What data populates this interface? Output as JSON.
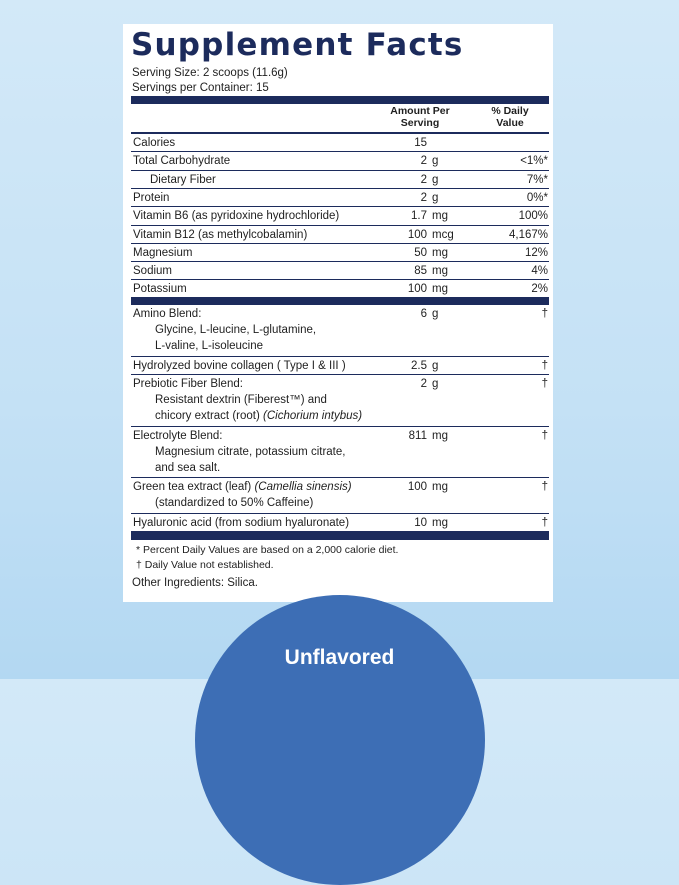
{
  "title": "Supplement Facts",
  "serving_size": "Serving Size: 2 scoops (11.6g)",
  "servings_per_container": "Servings per Container: 15",
  "header": {
    "amount": "Amount Per Serving",
    "dv": "% Daily Value"
  },
  "rows": [
    {
      "name": "Calories",
      "amount": "15"
    },
    {
      "name": "Total Carbohydrate",
      "amount": "2",
      "unit": "g",
      "dv": "<1%*"
    },
    {
      "name": "Dietary Fiber",
      "indent": true,
      "amount": "2",
      "unit": "g",
      "dv": "7%*"
    },
    {
      "name": "Protein",
      "amount": "2",
      "unit": "g",
      "dv": "0%*"
    },
    {
      "name": "Vitamin B6 (as pyridoxine hydrochloride)",
      "amount": "1.7",
      "unit": "mg",
      "dv": "100%"
    },
    {
      "name": "Vitamin B12 (as methylcobalamin)",
      "amount": "100",
      "unit": "mcg",
      "dv": "4,167%"
    },
    {
      "name": "Magnesium",
      "amount": "50",
      "unit": "mg",
      "dv": "12%"
    },
    {
      "name": "Sodium",
      "amount": "85",
      "unit": "mg",
      "dv": "4%"
    },
    {
      "name": "Potassium",
      "amount": "100",
      "unit": "mg",
      "dv": "2%"
    }
  ],
  "blends": [
    {
      "name": "Amino Blend:",
      "sub": [
        "Glycine, L-leucine, L-glutamine,",
        "L-valine, L-isoleucine"
      ],
      "amount": "6",
      "unit": "g",
      "dv": "†"
    },
    {
      "name": "Hydrolyzed bovine collagen ( Type I & III )",
      "amount": "2.5",
      "unit": "g",
      "dv": "†"
    },
    {
      "name": "Prebiotic Fiber Blend:",
      "sub": [
        "Resistant dextrin (Fiberest™) and",
        "chicory extract (root)"
      ],
      "sub_italic": "(Cichorium intybus)",
      "amount": "2",
      "unit": "g",
      "dv": "†"
    },
    {
      "name": "Electrolyte Blend:",
      "sub": [
        "Magnesium citrate, potassium citrate,",
        "and sea salt."
      ],
      "amount": "811",
      "unit": "mg",
      "dv": "†"
    },
    {
      "name": "Green tea extract (leaf)",
      "name_italic": "(Camellia sinensis)",
      "sub": [
        "(standardized to 50% Caffeine)"
      ],
      "amount": "100",
      "unit": "mg",
      "dv": "†"
    },
    {
      "name": "Hyaluronic acid (from sodium hyaluronate)",
      "amount": "10",
      "unit": "mg",
      "dv": "†"
    }
  ],
  "footnotes": [
    "* Percent Daily Values are based on a 2,000 calorie diet.",
    "† Daily Value not established."
  ],
  "other_ingredients": "Other Ingredients: Silica.",
  "badge": "Unflavored"
}
